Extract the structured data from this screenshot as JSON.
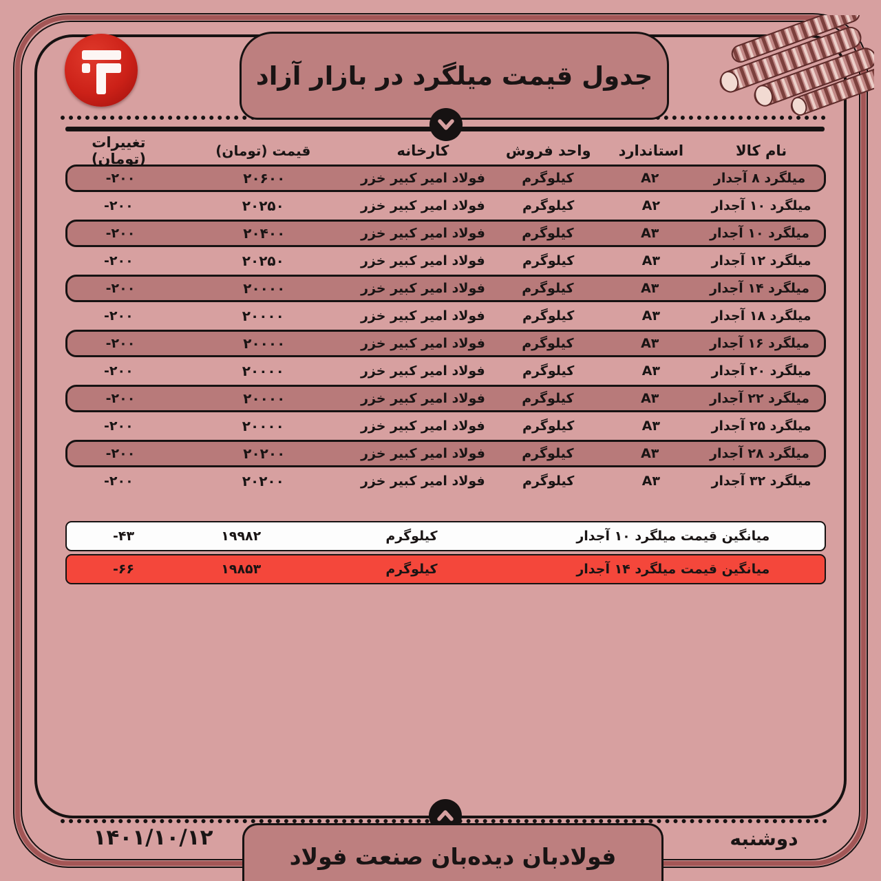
{
  "page": {
    "title": "جدول قیمت میلگرد در بازار آزاد",
    "footer_brand": "فولادبان دیده‌بان صنعت فولاد",
    "date": "۱۴۰۱/۱۰/۱۲",
    "weekday": "دوشنبه"
  },
  "colors": {
    "page_bg": "#d7a0a0",
    "panel_bg": "#bd7f7f",
    "row_highlight_bg": "#b87a7a",
    "frame_band": "#a35656",
    "line_black": "#161212",
    "logo_red": "#cc2118",
    "summary_white_bg": "#fdfdfd",
    "summary_red_bg": "#f4473b"
  },
  "icons": {
    "logo": "fooladban-logo",
    "header_chevron": "chevron-down",
    "footer_chevron": "chevron-up",
    "rebar_illustration": "rebar-bars"
  },
  "table": {
    "headers": [
      "نام کالا",
      "استاندارد",
      "واحد فروش",
      "کارخانه",
      "قیمت (تومان)",
      "تغییرات (تومان)"
    ],
    "rows": [
      {
        "name": "میلگرد ۸ آجدار",
        "standard": "A۲",
        "unit": "کیلوگرم",
        "factory": "فولاد امیر کبیر خزر",
        "price": "۲۰۶۰۰",
        "change": "-۲۰۰",
        "highlight": true
      },
      {
        "name": "میلگرد ۱۰ آجدار",
        "standard": "A۲",
        "unit": "کیلوگرم",
        "factory": "فولاد امیر کبیر خزر",
        "price": "۲۰۲۵۰",
        "change": "-۲۰۰",
        "highlight": false
      },
      {
        "name": "میلگرد ۱۰ آجدار",
        "standard": "A۳",
        "unit": "کیلوگرم",
        "factory": "فولاد امیر کبیر خزر",
        "price": "۲۰۴۰۰",
        "change": "-۲۰۰",
        "highlight": true
      },
      {
        "name": "میلگرد ۱۲ آجدار",
        "standard": "A۳",
        "unit": "کیلوگرم",
        "factory": "فولاد امیر کبیر خزر",
        "price": "۲۰۲۵۰",
        "change": "-۲۰۰",
        "highlight": false
      },
      {
        "name": "میلگرد ۱۴ آجدار",
        "standard": "A۳",
        "unit": "کیلوگرم",
        "factory": "فولاد امیر کبیر خزر",
        "price": "۲۰۰۰۰",
        "change": "-۲۰۰",
        "highlight": true
      },
      {
        "name": "میلگرد ۱۸ آجدار",
        "standard": "A۳",
        "unit": "کیلوگرم",
        "factory": "فولاد امیر کبیر خزر",
        "price": "۲۰۰۰۰",
        "change": "-۲۰۰",
        "highlight": false
      },
      {
        "name": "میلگرد ۱۶ آجدار",
        "standard": "A۳",
        "unit": "کیلوگرم",
        "factory": "فولاد امیر کبیر خزر",
        "price": "۲۰۰۰۰",
        "change": "-۲۰۰",
        "highlight": true
      },
      {
        "name": "میلگرد ۲۰ آجدار",
        "standard": "A۳",
        "unit": "کیلوگرم",
        "factory": "فولاد امیر کبیر خزر",
        "price": "۲۰۰۰۰",
        "change": "-۲۰۰",
        "highlight": false
      },
      {
        "name": "میلگرد ۲۲ آجدار",
        "standard": "A۳",
        "unit": "کیلوگرم",
        "factory": "فولاد امیر کبیر خزر",
        "price": "۲۰۰۰۰",
        "change": "-۲۰۰",
        "highlight": true
      },
      {
        "name": "میلگرد ۲۵ آجدار",
        "standard": "A۳",
        "unit": "کیلوگرم",
        "factory": "فولاد امیر کبیر خزر",
        "price": "۲۰۰۰۰",
        "change": "-۲۰۰",
        "highlight": false
      },
      {
        "name": "میلگرد ۲۸ آجدار",
        "standard": "A۳",
        "unit": "کیلوگرم",
        "factory": "فولاد امیر کبیر خزر",
        "price": "۲۰۲۰۰",
        "change": "-۲۰۰",
        "highlight": true
      },
      {
        "name": "میلگرد ۳۲ آجدار",
        "standard": "A۳",
        "unit": "کیلوگرم",
        "factory": "فولاد امیر کبیر خزر",
        "price": "۲۰۲۰۰",
        "change": "-۲۰۰",
        "highlight": false
      }
    ]
  },
  "summary_rows": [
    {
      "name": "میانگین قیمت میلگرد ۱۰ آجدار",
      "unit": "کیلوگرم",
      "price": "۱۹۹۸۲",
      "change": "-۴۳",
      "style": "white"
    },
    {
      "name": "میانگین قیمت میلگرد ۱۴ آجدار",
      "unit": "کیلوگرم",
      "price": "۱۹۸۵۳",
      "change": "-۶۶",
      "style": "red"
    }
  ]
}
